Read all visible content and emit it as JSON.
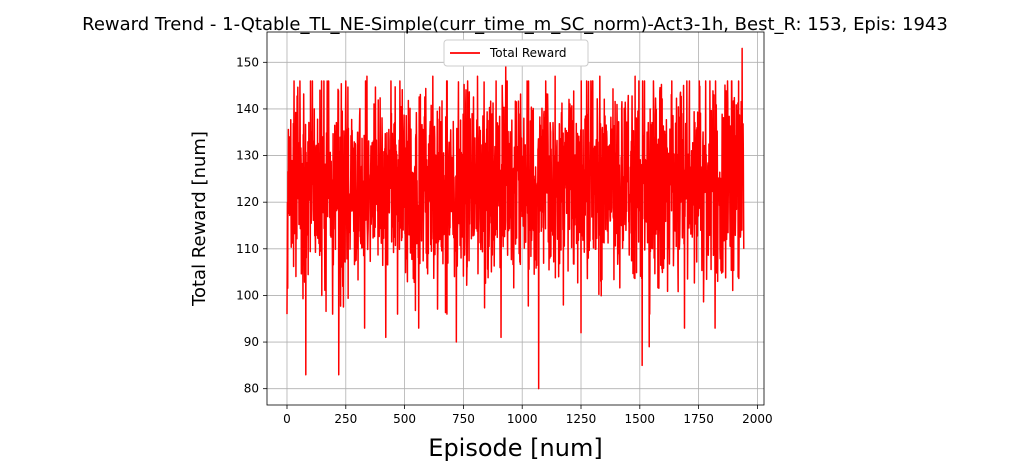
{
  "chart_data": {
    "type": "line",
    "title": "Reward Trend - 1-Qtable_TL_NE-Simple(curr_time_m_SC_norm)-Act3-1h, Best_R: 153, Epis: 1943",
    "xlabel": "Episode [num]",
    "ylabel": "Total Reward [num]",
    "xlim": [
      -85,
      2028
    ],
    "ylim": [
      76.5,
      156.5
    ],
    "xticks": [
      0,
      250,
      500,
      750,
      1000,
      1250,
      1500,
      1750,
      2000
    ],
    "yticks": [
      80,
      90,
      100,
      110,
      120,
      130,
      140,
      150
    ],
    "xtick_labels": [
      "0",
      "250",
      "500",
      "750",
      "1000",
      "1250",
      "1500",
      "1750",
      "2000"
    ],
    "ytick_labels": [
      "80",
      "90",
      "100",
      "110",
      "120",
      "130",
      "140",
      "150"
    ],
    "grid": true,
    "legend": "upper-center",
    "series": [
      {
        "name": "Total Reward",
        "color": "#ff0000",
        "n_episodes": 1943,
        "range": [
          80,
          153
        ],
        "mean": 124,
        "notable_points": [
          {
            "x": 0,
            "y": 96
          },
          {
            "x": 10,
            "y": 134
          },
          {
            "x": 30,
            "y": 146
          },
          {
            "x": 80,
            "y": 83
          },
          {
            "x": 100,
            "y": 146
          },
          {
            "x": 140,
            "y": 144
          },
          {
            "x": 220,
            "y": 83
          },
          {
            "x": 250,
            "y": 146
          },
          {
            "x": 330,
            "y": 93
          },
          {
            "x": 340,
            "y": 147
          },
          {
            "x": 420,
            "y": 91
          },
          {
            "x": 480,
            "y": 146
          },
          {
            "x": 560,
            "y": 93
          },
          {
            "x": 620,
            "y": 147
          },
          {
            "x": 720,
            "y": 90
          },
          {
            "x": 810,
            "y": 147
          },
          {
            "x": 910,
            "y": 91
          },
          {
            "x": 930,
            "y": 150
          },
          {
            "x": 1070,
            "y": 80
          },
          {
            "x": 1140,
            "y": 147
          },
          {
            "x": 1250,
            "y": 92
          },
          {
            "x": 1330,
            "y": 147
          },
          {
            "x": 1480,
            "y": 147
          },
          {
            "x": 1510,
            "y": 85
          },
          {
            "x": 1540,
            "y": 89
          },
          {
            "x": 1700,
            "y": 146
          },
          {
            "x": 1690,
            "y": 93
          },
          {
            "x": 1780,
            "y": 146
          },
          {
            "x": 1820,
            "y": 93
          },
          {
            "x": 1935,
            "y": 153
          },
          {
            "x": 1943,
            "y": 110
          }
        ]
      }
    ]
  }
}
